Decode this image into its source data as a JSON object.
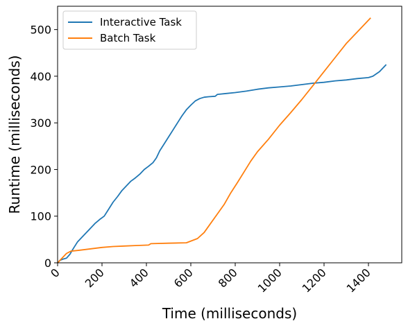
{
  "chart_data": {
    "type": "line",
    "title": "",
    "xlabel": "Time (milliseconds)",
    "ylabel": "Runtime (milliseconds)",
    "xlim": [
      0,
      1550
    ],
    "ylim": [
      0,
      550
    ],
    "xticks": [
      0,
      200,
      400,
      600,
      800,
      1000,
      1200,
      1400
    ],
    "yticks": [
      0,
      100,
      200,
      300,
      400,
      500
    ],
    "x_tick_rotation_deg": 45,
    "grid": false,
    "legend_position": "upper left",
    "series": [
      {
        "name": "Interactive Task",
        "color": "#1f77b4",
        "points": [
          [
            0,
            0
          ],
          [
            10,
            5
          ],
          [
            25,
            8
          ],
          [
            40,
            10
          ],
          [
            55,
            18
          ],
          [
            70,
            30
          ],
          [
            90,
            45
          ],
          [
            110,
            55
          ],
          [
            130,
            65
          ],
          [
            150,
            75
          ],
          [
            170,
            85
          ],
          [
            190,
            93
          ],
          [
            210,
            100
          ],
          [
            230,
            115
          ],
          [
            250,
            130
          ],
          [
            270,
            142
          ],
          [
            290,
            155
          ],
          [
            310,
            165
          ],
          [
            330,
            175
          ],
          [
            350,
            182
          ],
          [
            370,
            190
          ],
          [
            390,
            200
          ],
          [
            410,
            207
          ],
          [
            430,
            215
          ],
          [
            445,
            225
          ],
          [
            460,
            240
          ],
          [
            480,
            255
          ],
          [
            500,
            270
          ],
          [
            520,
            285
          ],
          [
            540,
            300
          ],
          [
            560,
            315
          ],
          [
            580,
            328
          ],
          [
            600,
            338
          ],
          [
            620,
            347
          ],
          [
            640,
            352
          ],
          [
            660,
            355
          ],
          [
            680,
            356
          ],
          [
            710,
            357
          ],
          [
            720,
            361
          ],
          [
            760,
            363
          ],
          [
            800,
            365
          ],
          [
            850,
            368
          ],
          [
            900,
            372
          ],
          [
            950,
            375
          ],
          [
            1000,
            377
          ],
          [
            1050,
            379
          ],
          [
            1100,
            382
          ],
          [
            1150,
            385
          ],
          [
            1200,
            387
          ],
          [
            1250,
            390
          ],
          [
            1300,
            392
          ],
          [
            1350,
            395
          ],
          [
            1400,
            397
          ],
          [
            1420,
            400
          ],
          [
            1450,
            410
          ],
          [
            1480,
            425
          ]
        ]
      },
      {
        "name": "Batch Task",
        "color": "#ff7f0e",
        "points": [
          [
            0,
            0
          ],
          [
            20,
            10
          ],
          [
            40,
            20
          ],
          [
            60,
            25
          ],
          [
            100,
            27
          ],
          [
            150,
            30
          ],
          [
            200,
            33
          ],
          [
            250,
            35
          ],
          [
            300,
            36
          ],
          [
            350,
            37
          ],
          [
            410,
            38
          ],
          [
            420,
            41
          ],
          [
            500,
            42
          ],
          [
            580,
            43
          ],
          [
            630,
            52
          ],
          [
            660,
            65
          ],
          [
            690,
            85
          ],
          [
            720,
            105
          ],
          [
            750,
            125
          ],
          [
            780,
            150
          ],
          [
            810,
            172
          ],
          [
            840,
            195
          ],
          [
            870,
            218
          ],
          [
            900,
            238
          ],
          [
            950,
            265
          ],
          [
            1000,
            295
          ],
          [
            1050,
            322
          ],
          [
            1100,
            350
          ],
          [
            1150,
            380
          ],
          [
            1200,
            410
          ],
          [
            1250,
            440
          ],
          [
            1300,
            470
          ],
          [
            1350,
            495
          ],
          [
            1410,
            525
          ]
        ]
      }
    ]
  }
}
